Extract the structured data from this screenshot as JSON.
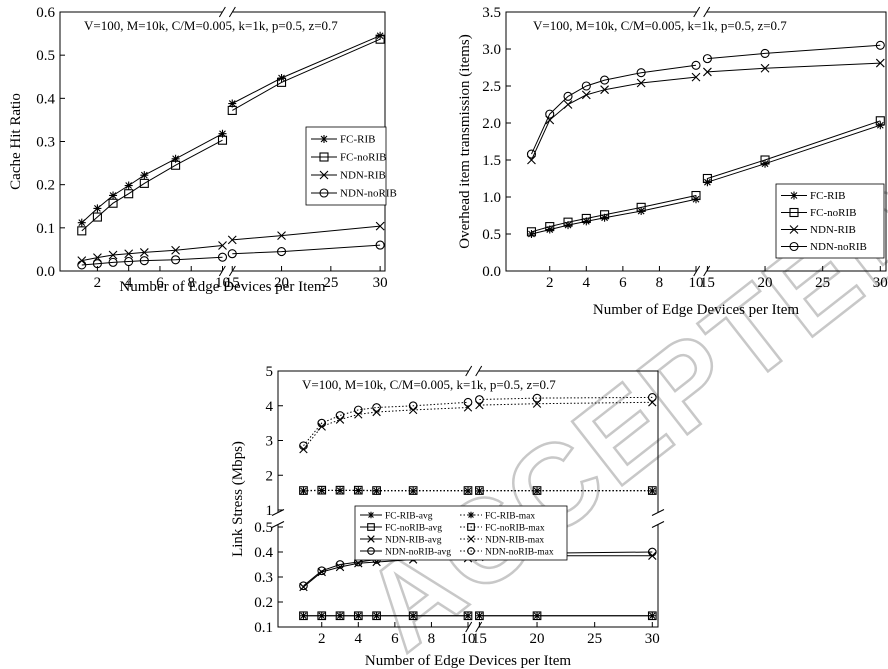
{
  "watermark": "ACCEPTED MANUSCRIPT",
  "chart_data": [
    {
      "type": "line",
      "params_text": "V=100, M=10k, C/M=0.005, k=1k, p=0.5, z=0.7",
      "xlabel": "Number of Edge Devices per Item",
      "ylabel": "Cache Hit Ratio",
      "x": [
        1,
        2,
        3,
        4,
        5,
        7,
        10,
        15,
        20,
        30
      ],
      "xticks": [
        2,
        4,
        6,
        8,
        10,
        15,
        20,
        25,
        30
      ],
      "xtick_labels": [
        "2",
        "4",
        "6",
        "8",
        "10",
        "15",
        "20",
        "25",
        "30"
      ],
      "x_break_after": 10,
      "ylim": [
        0,
        0.6
      ],
      "yticks": [
        0.0,
        0.1,
        0.2,
        0.3,
        0.4,
        0.5,
        0.6
      ],
      "ytick_labels": [
        "0.0",
        "0.1",
        "0.2",
        "0.3",
        "0.4",
        "0.5",
        "0.6"
      ],
      "legend_position": "center-right",
      "series": [
        {
          "name": "FC-RIB",
          "marker": "asterisk",
          "values": [
            0.112,
            0.145,
            0.175,
            0.198,
            0.222,
            0.26,
            0.318,
            0.388,
            0.447,
            0.545
          ]
        },
        {
          "name": "FC-noRIB",
          "marker": "square",
          "values": [
            0.093,
            0.125,
            0.157,
            0.179,
            0.203,
            0.245,
            0.303,
            0.372,
            0.437,
            0.537
          ]
        },
        {
          "name": "NDN-RIB",
          "marker": "x",
          "values": [
            0.024,
            0.031,
            0.037,
            0.04,
            0.043,
            0.048,
            0.059,
            0.072,
            0.082,
            0.104
          ]
        },
        {
          "name": "NDN-noRIB",
          "marker": "circle",
          "values": [
            0.014,
            0.017,
            0.02,
            0.022,
            0.024,
            0.026,
            0.032,
            0.04,
            0.045,
            0.06
          ]
        }
      ]
    },
    {
      "type": "line",
      "params_text": "V=100, M=10k, C/M=0.005, k=1k, p=0.5, z=0.7",
      "xlabel": "Number of Edge Devices per Item",
      "ylabel": "Overhead item transmission (items)",
      "x": [
        1,
        2,
        3,
        4,
        5,
        7,
        10,
        15,
        20,
        30
      ],
      "xticks": [
        2,
        4,
        6,
        8,
        10,
        15,
        20,
        25,
        30
      ],
      "xtick_labels": [
        "2",
        "4",
        "6",
        "8",
        "10",
        "15",
        "20",
        "25",
        "30"
      ],
      "x_break_after": 10,
      "ylim": [
        0,
        3.5
      ],
      "yticks": [
        0.0,
        0.5,
        1.0,
        1.5,
        2.0,
        2.5,
        3.0,
        3.5
      ],
      "ytick_labels": [
        "0.0",
        "0.5",
        "1.0",
        "1.5",
        "2.0",
        "2.5",
        "3.0",
        "3.5"
      ],
      "legend_position": "bottom-right",
      "series": [
        {
          "name": "FC-RIB",
          "marker": "asterisk",
          "values": [
            0.5,
            0.56,
            0.62,
            0.67,
            0.72,
            0.81,
            0.97,
            1.2,
            1.45,
            1.97
          ]
        },
        {
          "name": "FC-noRIB",
          "marker": "square",
          "values": [
            0.53,
            0.6,
            0.66,
            0.71,
            0.76,
            0.86,
            1.02,
            1.25,
            1.5,
            2.03
          ]
        },
        {
          "name": "NDN-RIB",
          "marker": "x",
          "values": [
            1.5,
            2.04,
            2.25,
            2.38,
            2.45,
            2.54,
            2.62,
            2.69,
            2.74,
            2.81
          ]
        },
        {
          "name": "NDN-noRIB",
          "marker": "circle",
          "values": [
            1.58,
            2.12,
            2.36,
            2.5,
            2.58,
            2.68,
            2.78,
            2.87,
            2.94,
            3.05
          ]
        }
      ]
    },
    {
      "type": "line",
      "params_text": "V=100, M=10k, C/M=0.005, k=1k, p=0.5, z=0.7",
      "xlabel": "Number of Edge Devices per Item",
      "ylabel": "Link Stress (Mbps)",
      "x": [
        1,
        2,
        3,
        4,
        5,
        7,
        10,
        15,
        20,
        30
      ],
      "xticks": [
        2,
        4,
        6,
        8,
        10,
        15,
        20,
        25,
        30
      ],
      "xtick_labels": [
        "2",
        "4",
        "6",
        "8",
        "10",
        "15",
        "20",
        "25",
        "30"
      ],
      "x_break_after": 10,
      "y_break": [
        0.5,
        1
      ],
      "yticks": [
        0.1,
        0.2,
        0.3,
        0.4,
        0.5,
        1,
        2,
        3,
        4,
        5
      ],
      "ytick_labels": [
        "0.1",
        "0.2",
        "0.3",
        "0.4",
        "0.5",
        "1",
        "2",
        "3",
        "4",
        "5"
      ],
      "legend_position": "center",
      "series": [
        {
          "name": "FC-RIB-avg",
          "marker": "asterisk",
          "style": "solid",
          "values": [
            0.145,
            0.145,
            0.145,
            0.145,
            0.145,
            0.145,
            0.145,
            0.145,
            0.145,
            0.145
          ]
        },
        {
          "name": "FC-RIB-max",
          "marker": "asterisk",
          "style": "dotted",
          "values": [
            1.55,
            1.56,
            1.56,
            1.56,
            1.55,
            1.55,
            1.55,
            1.55,
            1.55,
            1.55
          ]
        },
        {
          "name": "FC-noRIB-avg",
          "marker": "square",
          "style": "solid",
          "values": [
            0.145,
            0.145,
            0.145,
            0.145,
            0.145,
            0.145,
            0.145,
            0.145,
            0.145,
            0.145
          ]
        },
        {
          "name": "FC-noRIB-max",
          "marker": "square",
          "style": "dotted",
          "values": [
            1.56,
            1.57,
            1.57,
            1.57,
            1.56,
            1.56,
            1.56,
            1.56,
            1.56,
            1.56
          ]
        },
        {
          "name": "NDN-RIB-avg",
          "marker": "x",
          "style": "solid",
          "values": [
            0.26,
            0.32,
            0.34,
            0.355,
            0.36,
            0.37,
            0.375,
            0.38,
            0.385,
            0.385
          ]
        },
        {
          "name": "NDN-RIB-max",
          "marker": "x",
          "style": "dotted",
          "values": [
            2.75,
            3.4,
            3.6,
            3.75,
            3.82,
            3.88,
            3.95,
            4.02,
            4.06,
            4.1
          ]
        },
        {
          "name": "NDN-noRIB-avg",
          "marker": "circle",
          "style": "solid",
          "values": [
            0.265,
            0.325,
            0.35,
            0.36,
            0.37,
            0.38,
            0.385,
            0.39,
            0.395,
            0.4
          ]
        },
        {
          "name": "NDN-noRIB-max",
          "marker": "circle",
          "style": "dotted",
          "values": [
            2.85,
            3.5,
            3.72,
            3.88,
            3.95,
            4.0,
            4.1,
            4.18,
            4.22,
            4.24
          ]
        }
      ]
    }
  ]
}
